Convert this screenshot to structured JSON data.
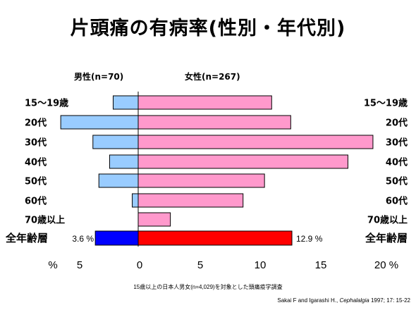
{
  "title": "片頭痛の有病率(性別・年代別)",
  "chart_data": {
    "type": "bar",
    "orientation": "horizontal-pyramid",
    "categories": [
      "15〜19歳",
      "20代",
      "30代",
      "40代",
      "50代",
      "60代",
      "70歳以上",
      "全年齢層"
    ],
    "series": [
      {
        "name": "男性(n=70)",
        "values": [
          2.1,
          6.5,
          3.8,
          2.4,
          3.3,
          0.5,
          0.0,
          3.6
        ]
      },
      {
        "name": "女性(n=267)",
        "values": [
          11.2,
          12.8,
          19.7,
          17.6,
          10.6,
          8.8,
          2.7,
          12.9
        ]
      }
    ],
    "x_ticks": [
      "%",
      "5",
      "0",
      "5",
      "10",
      "15",
      "20 %"
    ],
    "left_xlim": [
      0,
      7.5
    ],
    "right_xlim": [
      0,
      20
    ],
    "total_labels": {
      "male": "3.6 %",
      "female": "12.9 %"
    },
    "colors": {
      "male": "#99ccff",
      "female": "#ff99cc",
      "male_total": "#0000ff",
      "female_total": "#ff0000"
    },
    "grid": false
  },
  "footnote": "15歳以上の日本人男女(n=4,029)を対象とした頭痛疫学調査",
  "citation": {
    "authors": "Sakai F and Igarashi H.,",
    "journal": "Cephalalgia",
    "details": "1997; 17: 15-22"
  }
}
